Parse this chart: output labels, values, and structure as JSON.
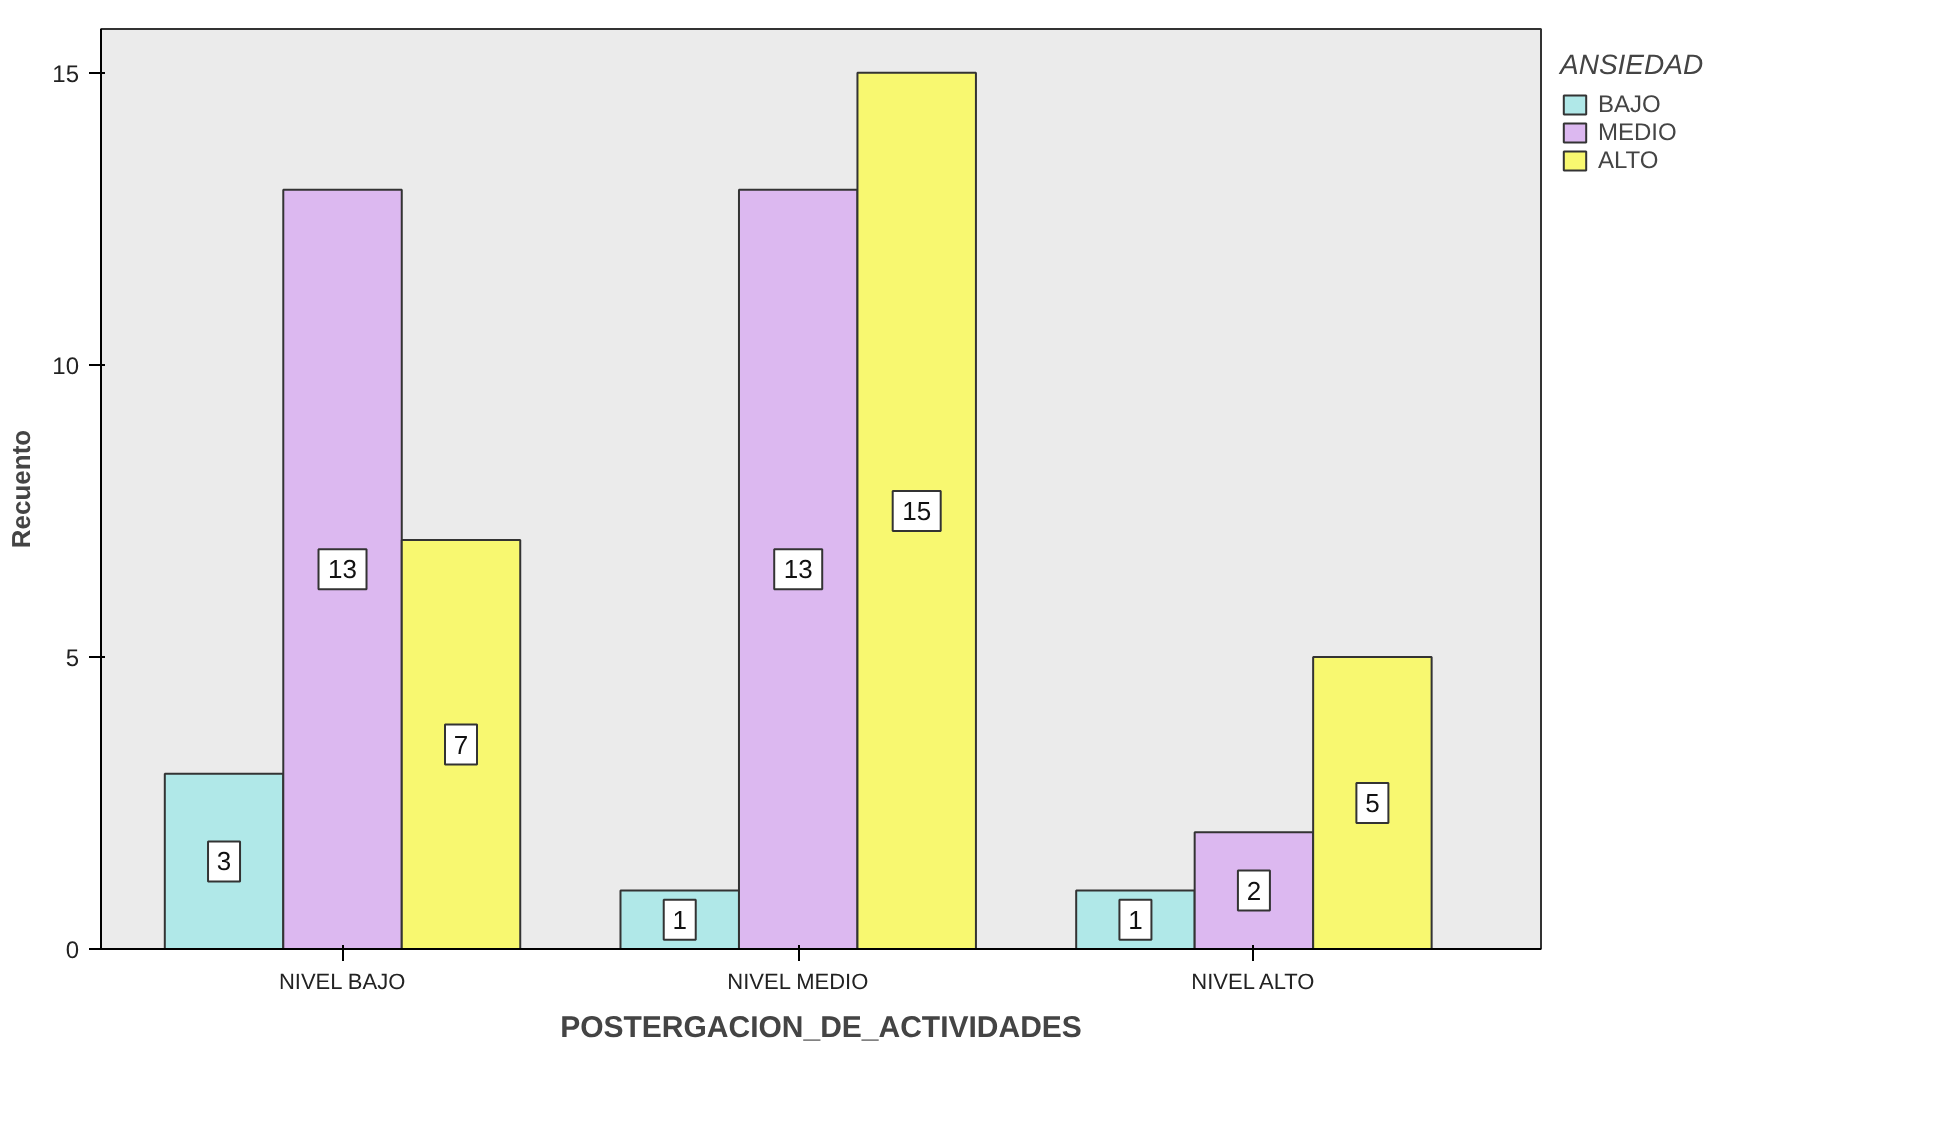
{
  "chart_data": {
    "type": "bar",
    "xlabel": "POSTERGACION_DE_ACTIVIDADES",
    "ylabel": "Recuento",
    "legend_title": "ANSIEDAD",
    "categories": [
      "NIVEL BAJO",
      "NIVEL MEDIO",
      "NIVEL ALTO"
    ],
    "series": [
      {
        "name": "BAJO",
        "color": "#b0e8e8",
        "values": [
          3,
          1,
          1
        ]
      },
      {
        "name": "MEDIO",
        "color": "#dcb8f0",
        "values": [
          13,
          13,
          2
        ]
      },
      {
        "name": "ALTO",
        "color": "#f8f870",
        "values": [
          7,
          15,
          5
        ]
      }
    ],
    "ylim": [
      0,
      15.75
    ],
    "yticks": [
      0,
      5,
      10,
      15
    ],
    "grid": false,
    "legend": "top right",
    "data_labels": true
  }
}
